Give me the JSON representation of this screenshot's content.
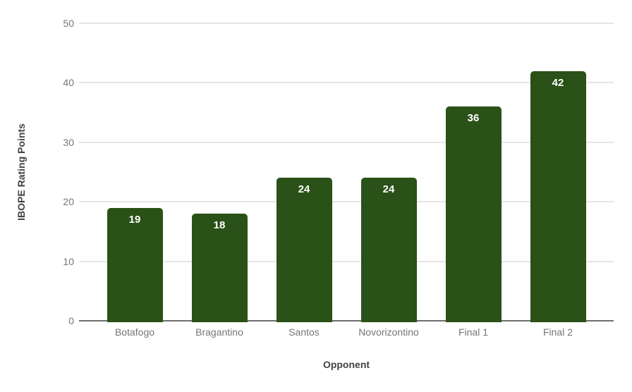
{
  "chart_data": {
    "type": "bar",
    "categories": [
      "Botafogo",
      "Bragantino",
      "Santos",
      "Novorizontino",
      "Final 1",
      "Final 2"
    ],
    "values": [
      19,
      18,
      24,
      24,
      36,
      42
    ],
    "bar_labels": [
      "19",
      "18",
      "24",
      "24",
      "36",
      "42"
    ],
    "title": "",
    "xlabel": "Opponent",
    "ylabel": "IBOPE Rating Points",
    "ylim": [
      0,
      50
    ],
    "yticks": [
      0,
      10,
      20,
      30,
      40,
      50
    ],
    "grid": true,
    "legend": "none",
    "colors": {
      "bar": "#2a5117",
      "bar_label": "#ffffff",
      "gridline": "#e6e6e6",
      "baseline": "#6e6e6e",
      "tick_label": "#757575",
      "category_label": "#757575",
      "axis_title": "#424242",
      "background": "#ffffff"
    }
  }
}
